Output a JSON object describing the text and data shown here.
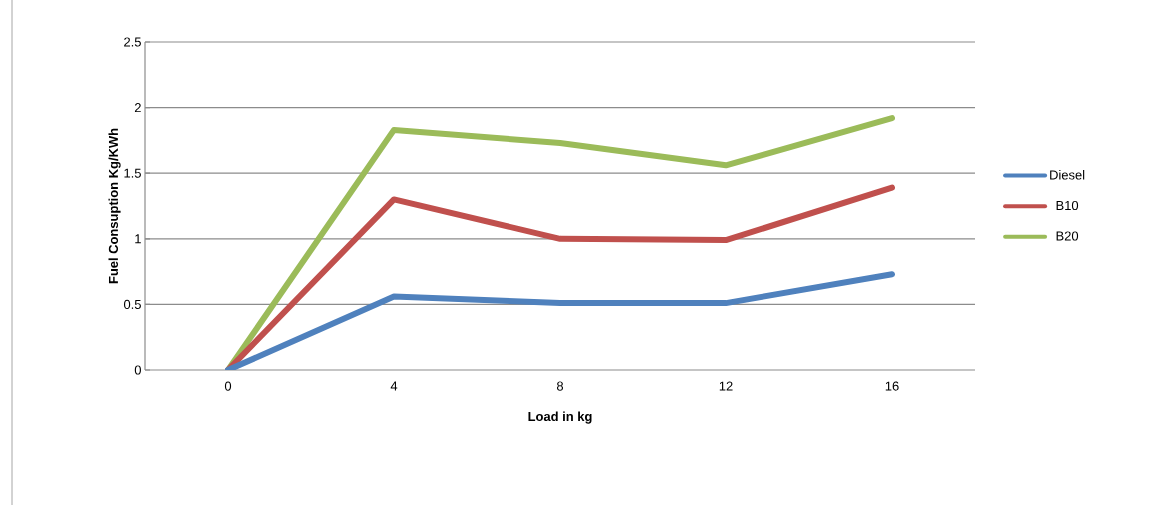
{
  "chart_data": {
    "type": "line",
    "xlabel": "Load in kg",
    "ylabel": "Fuel Consuption Kg/KWh",
    "categories": [
      "0",
      "4",
      "8",
      "12",
      "16"
    ],
    "series": [
      {
        "name": "B20",
        "color": "#9bbb59",
        "values": [
          0,
          1.83,
          1.73,
          1.56,
          1.92
        ]
      },
      {
        "name": "B10",
        "color": "#c0504d",
        "values": [
          0,
          1.3,
          1.0,
          0.99,
          1.39
        ]
      },
      {
        "name": "Diesel",
        "color": "#4f81bd",
        "values": [
          0,
          0.56,
          0.51,
          0.51,
          0.73
        ]
      }
    ],
    "ylim": [
      0,
      2.5
    ],
    "yticks": [
      0,
      0.5,
      1,
      1.5,
      2,
      2.5
    ],
    "grid": "y",
    "legend": "right",
    "marker": "none",
    "line_style": "solid"
  }
}
